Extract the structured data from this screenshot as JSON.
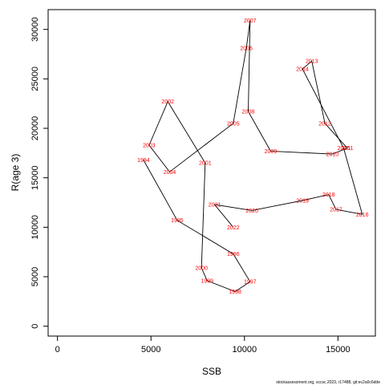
{
  "chart_data": {
    "type": "scatter",
    "xlabel": "SSB",
    "ylabel": "R(age 3)",
    "xlim": [
      -500,
      17000
    ],
    "ylim": [
      -1000,
      32000
    ],
    "x_ticks": [
      0,
      5000,
      10000,
      15000
    ],
    "y_ticks": [
      0,
      5000,
      10000,
      15000,
      20000,
      25000,
      30000
    ],
    "line_color": "#000000",
    "label_color": "#ff0000",
    "points": [
      {
        "year": "1994",
        "x": 4600,
        "y": 16800
      },
      {
        "year": "1995",
        "x": 6400,
        "y": 10700
      },
      {
        "year": "1996",
        "x": 9400,
        "y": 7300
      },
      {
        "year": "1997",
        "x": 10300,
        "y": 4500
      },
      {
        "year": "1998",
        "x": 9500,
        "y": 3500
      },
      {
        "year": "1999",
        "x": 8000,
        "y": 4600
      },
      {
        "year": "2000",
        "x": 7700,
        "y": 5900
      },
      {
        "year": "2001",
        "x": 7900,
        "y": 16500
      },
      {
        "year": "2002",
        "x": 5900,
        "y": 22700
      },
      {
        "year": "2003",
        "x": 4900,
        "y": 18300
      },
      {
        "year": "2004",
        "x": 6000,
        "y": 15600
      },
      {
        "year": "2005",
        "x": 9400,
        "y": 20500
      },
      {
        "year": "2006",
        "x": 10100,
        "y": 28100
      },
      {
        "year": "2007",
        "x": 10300,
        "y": 30900
      },
      {
        "year": "2008",
        "x": 10200,
        "y": 21700
      },
      {
        "year": "2009",
        "x": 11400,
        "y": 17700
      },
      {
        "year": "2010",
        "x": 14700,
        "y": 17400
      },
      {
        "year": "2011",
        "x": 15500,
        "y": 18000
      },
      {
        "year": "2012",
        "x": 14300,
        "y": 20500
      },
      {
        "year": "2013",
        "x": 13600,
        "y": 26800
      },
      {
        "year": "2014",
        "x": 13100,
        "y": 26000
      },
      {
        "year": "2015",
        "x": 15300,
        "y": 18000
      },
      {
        "year": "2016",
        "x": 16300,
        "y": 11300
      },
      {
        "year": "2017",
        "x": 14900,
        "y": 11800
      },
      {
        "year": "2018",
        "x": 14500,
        "y": 13300
      },
      {
        "year": "2019",
        "x": 13100,
        "y": 12700
      },
      {
        "year": "2020",
        "x": 10400,
        "y": 11700
      },
      {
        "year": "2021",
        "x": 8400,
        "y": 12300
      },
      {
        "year": "2022",
        "x": 9400,
        "y": 10000
      }
    ]
  },
  "footer_text": "stockassessment.org, sccsc.2023, r17488, git:ec2a0c6dde"
}
